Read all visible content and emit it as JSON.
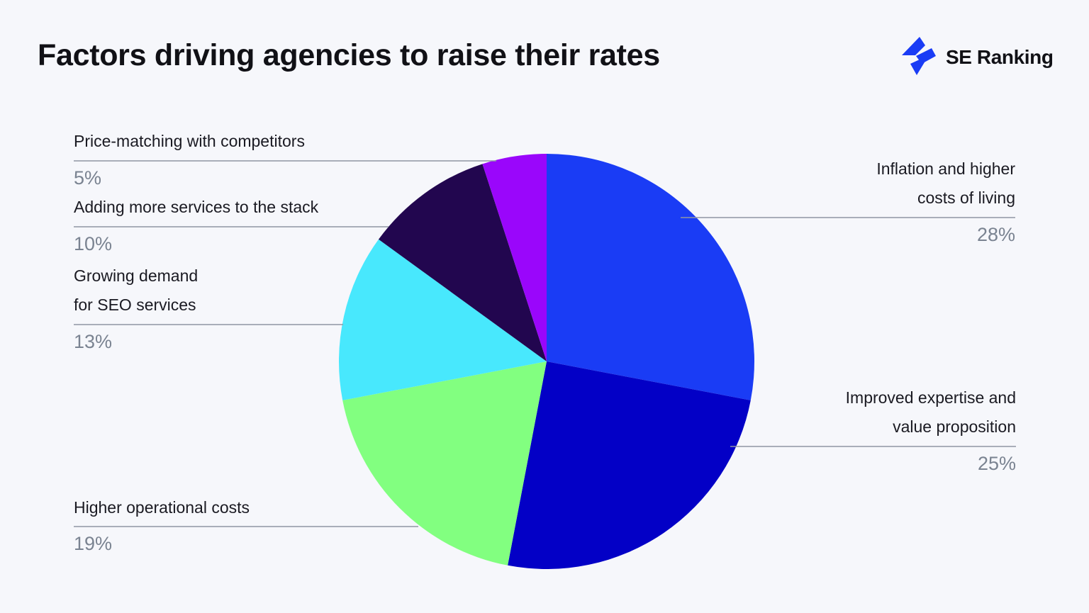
{
  "header": {
    "title": "Factors driving agencies to raise their rates"
  },
  "brand": {
    "name": "SE Ranking",
    "icon": "lightning-bolt-logo-icon",
    "color": "#1a3cf5"
  },
  "chart_data": {
    "type": "pie",
    "title": "Factors driving agencies to raise their rates",
    "slices": [
      {
        "label": [
          "Inflation and higher",
          "costs of living"
        ],
        "value": 28,
        "display": "28%",
        "color": "#1a3cf5"
      },
      {
        "label": [
          "Improved expertise and",
          "value proposition"
        ],
        "value": 25,
        "display": "25%",
        "color": "#0300c6"
      },
      {
        "label": [
          "Higher operational costs"
        ],
        "value": 19,
        "display": "19%",
        "color": "#82ff80"
      },
      {
        "label": [
          "Growing demand",
          "for SEO services"
        ],
        "value": 13,
        "display": "13%",
        "color": "#48e8fd"
      },
      {
        "label": [
          "Adding more services to the stack"
        ],
        "value": 10,
        "display": "10%",
        "color": "#22064f"
      },
      {
        "label": [
          "Price-matching with competitors"
        ],
        "value": 5,
        "display": "5%",
        "color": "#9a06fb"
      }
    ],
    "start": "12 o'clock",
    "direction": "clockwise",
    "legend": "none"
  }
}
